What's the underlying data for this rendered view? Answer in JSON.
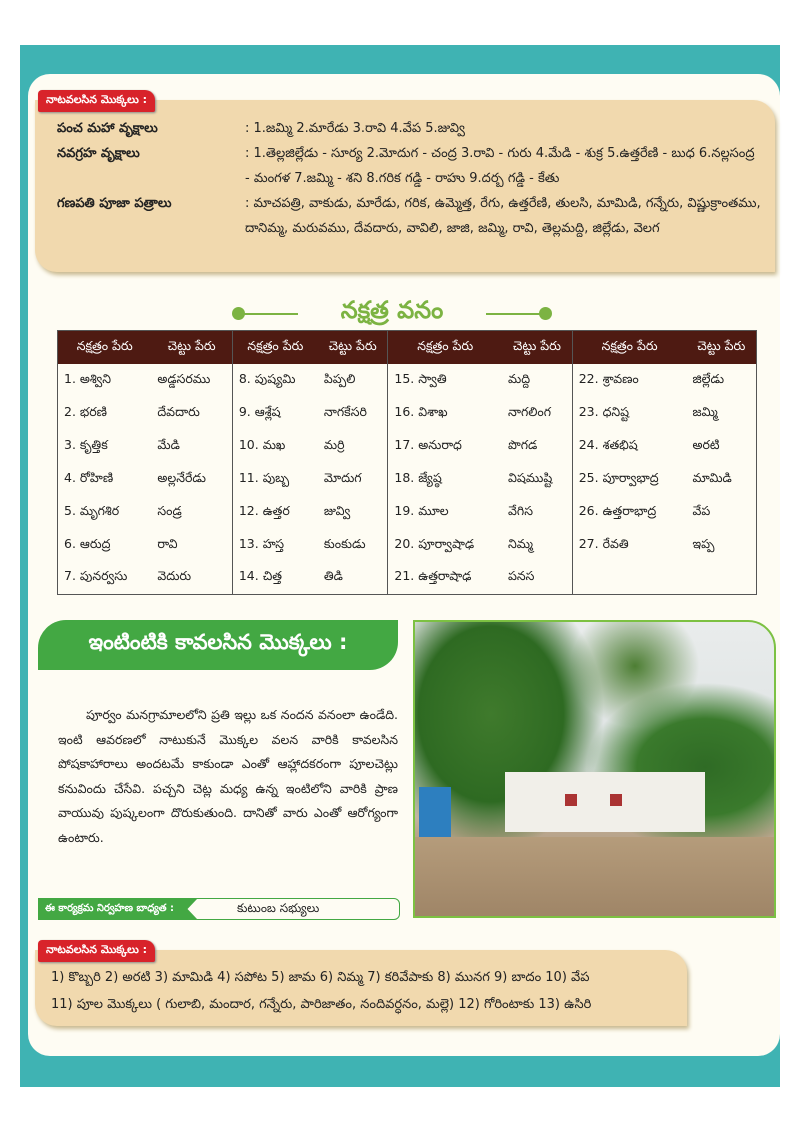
{
  "top_box": {
    "tag": "నాటవలసిన మొక్కలు :",
    "rows": [
      {
        "label": "పంచ మహా వృక్షాలు",
        "value": ": 1.జమ్మి 2.మారేడు 3.రావి 4.వేప 5.జువ్వి"
      },
      {
        "label": "నవగ్రహ వృక్షాలు",
        "value": ": 1.తెల్లజిల్లేడు - సూర్య 2.మోదుగ - చంద్ర 3.రావి - గురు 4.మేడి - శుక్ర 5.ఉత్తరేణి - బుధ 6.నల్లసంద్ర - మంగళ 7.జమ్మి - శని 8.గరిక గడ్డి - రాహు 9.దర్బ గడ్డి - కేతు"
      },
      {
        "label": "గణపతి పూజా పత్రాలు",
        "value": ": మాచపత్రి, వాకుడు, మారేడు, గరిక, ఉమ్మెత్త, రేగు, ఉత్తరేణి, తులసి, మామిడి, గన్నేరు, విష్ణుక్రాంతము, దానిమ్మ, మరువము, దేవదారు, వావిలి, జాజి, జమ్మి, రావి, తెల్లమద్ది, జిల్లేడు, వెలగ"
      }
    ]
  },
  "nakshatra": {
    "title": "నక్షత్ర వనం",
    "headers": [
      "నక్షత్రం పేరు",
      "చెట్టు పేరు",
      "నక్షత్రం పేరు",
      "చెట్టు పేరు",
      "నక్షత్రం పేరు",
      "చెట్టు పేరు",
      "నక్షత్రం పేరు",
      "చెట్టు పేరు"
    ],
    "rows": [
      [
        "1. అశ్విని",
        "అడ్డసరము",
        "8. పుష్యమి",
        "పిప్పలి",
        "15. స్వాతి",
        "మద్ది",
        "22. శ్రావణం",
        "జిల్లేడు"
      ],
      [
        "2. భరణి",
        "దేవదారు",
        "9. ఆశ్లేష",
        "నాగకేసరి",
        "16. విశాఖ",
        "నాగలింగ",
        "23. ధనిష్ట",
        "జమ్మి"
      ],
      [
        "3. కృత్తిక",
        "మేడి",
        "10. మఖ",
        "మర్రి",
        "17. అనురాధ",
        "పొగడ",
        "24. శతభిష",
        "అరటి"
      ],
      [
        "4. రోహిణి",
        "అల్లనేరేడు",
        "11. పుబ్బ",
        "మోదుగ",
        "18. జ్యేష్ఠ",
        "విషముష్టి",
        "25. పూర్వాభాద్ర",
        "మామిడి"
      ],
      [
        "5. మృగశిర",
        "సండ్ర",
        "12. ఉత్తర",
        "జువ్వి",
        "19. మూల",
        "వేగిస",
        "26. ఉత్తరాభాద్ర",
        "వేప"
      ],
      [
        "6. ఆరుద్ర",
        "రావి",
        "13. హస్త",
        "కుంకుడు",
        "20. పూర్వాషాఢ",
        "నిమ్మ",
        "27. రేవతి",
        "ఇప్ప"
      ],
      [
        "7. పునర్వసు",
        "వెదురు",
        "14. చిత్త",
        "తిడి",
        "21. ఉత్తరాషాఢ",
        "పనస",
        "",
        ""
      ]
    ]
  },
  "home": {
    "heading": "ఇంటింటికి కావలసిన మొక్కలు :",
    "paragraph": "పూర్వం మనగ్రామాలలోని ప్రతి ఇల్లు ఒక నందన వనంలా ఉండేది. ఇంటి ఆవరణలో నాటుకునే మొక్కల వలన వారికి కావలసిన పోషకాహారాలు అందటమే కాకుండా ఎంతో ఆహ్లాదకరంగా పూలచెట్లు కనువిందు చేసేవి. పచ్చని చెట్ల మధ్య ఉన్న ఇంటిలోని వారికి ప్రాణ వాయువు పుష్కలంగా దొరుకుతుంది. దానితో వారు ఎంతో ఆరోగ్యంగా ఉంటారు.",
    "responsibility_label": "ఈ కార్యక్రమ నిర్వహణ బాధ్యత :",
    "responsibility_value": "కుటుంబ సభ్యులు"
  },
  "bottom_box": {
    "tag": "నాటవలసిన మొక్కలు :",
    "line1": "1) కొబ్బరి 2) అరటి 3) మామిడి 4) సపోట 5) జామ 6) నిమ్మ 7) కరివేపాకు 8) మునగ 9) బాదం 10) వేప",
    "line2": "11) పూల మొక్కలు ( గులాబి, మందార, గన్నేరు, పారిజాతం, నందివర్ధనం, మల్లె) 12) గోరింటాకు 13) ఉసిరి"
  },
  "colors": {
    "band": "#3fb3b3",
    "tag": "#d8232a",
    "tan": "#f1d9ae",
    "table_header": "#4e1a12",
    "green": "#43a843",
    "title_green": "#7cb342"
  }
}
